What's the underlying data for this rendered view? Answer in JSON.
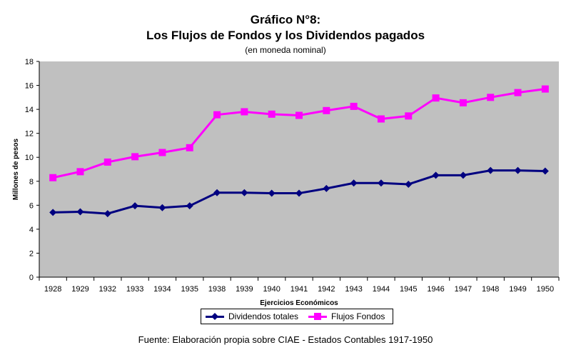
{
  "chart_data": {
    "type": "line",
    "title": "Gráfico N°8:",
    "subtitle": "Los Flujos de Fondos y los Dividendos pagados",
    "note": "(en moneda nominal)",
    "xlabel": "Ejercicios Económicos",
    "ylabel": "Millones de pesos",
    "ylim": [
      0,
      18
    ],
    "yticks": [
      0,
      2,
      4,
      6,
      8,
      10,
      12,
      14,
      16,
      18
    ],
    "grid": false,
    "legend_position": "bottom",
    "background": "#c0c0c0",
    "categories": [
      "1928",
      "1929",
      "1932",
      "1933",
      "1934",
      "1935",
      "1938",
      "1939",
      "1940",
      "1941",
      "1942",
      "1943",
      "1944",
      "1945",
      "1946",
      "1947",
      "1948",
      "1949",
      "1950"
    ],
    "series": [
      {
        "name": "Dividendos totales",
        "color": "#000080",
        "marker": "diamond",
        "values": [
          5.4,
          5.45,
          5.3,
          5.95,
          5.8,
          5.95,
          7.05,
          7.05,
          7.0,
          7.0,
          7.4,
          7.85,
          7.85,
          7.75,
          8.5,
          8.5,
          8.9,
          8.9,
          8.85
        ]
      },
      {
        "name": "Flujos Fondos",
        "color": "#ff00ff",
        "marker": "square",
        "values": [
          8.3,
          8.8,
          9.6,
          10.05,
          10.4,
          10.8,
          13.55,
          13.8,
          13.6,
          13.5,
          13.9,
          14.25,
          13.2,
          13.45,
          14.95,
          14.55,
          15.0,
          15.4,
          15.7
        ]
      }
    ]
  },
  "source": "Fuente: Elaboración propia sobre CIAE - Estados Contables 1917-1950"
}
